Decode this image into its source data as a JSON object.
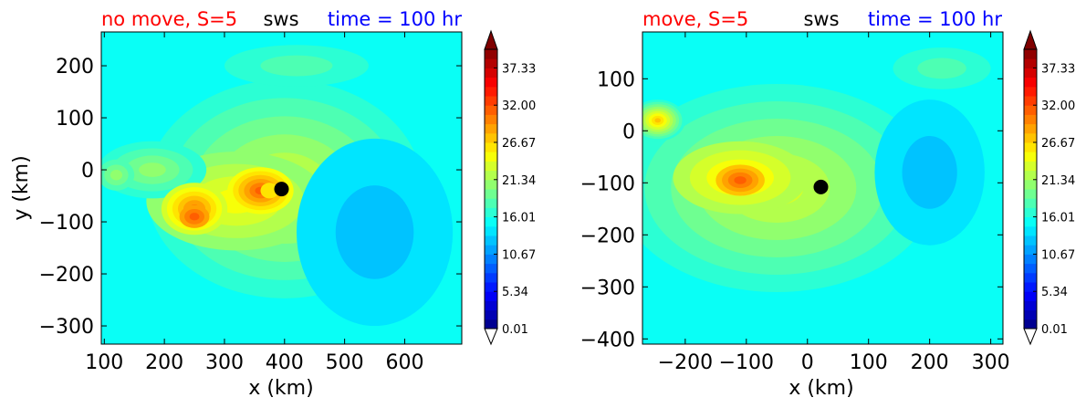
{
  "chart_data": [
    {
      "type": "heatmap",
      "title_left": "no move, S=5",
      "title_center": "sws",
      "title_right": "time = 100 hr",
      "title_colors": {
        "left": "#ff0000",
        "center": "#000000",
        "right": "#0000ff"
      },
      "xlabel": "x (km)",
      "ylabel": "y (km)",
      "xlim": [
        95,
        695
      ],
      "ylim": [
        -335,
        265
      ],
      "xticks": [
        100,
        200,
        300,
        400,
        500,
        600
      ],
      "xtick_labels": [
        "100",
        "200",
        "300",
        "400",
        "500",
        "600"
      ],
      "yticks": [
        200,
        100,
        0,
        -100,
        -200,
        -300
      ],
      "ytick_labels": [
        "200",
        "100",
        "0",
        "−100",
        "−200",
        "−300"
      ],
      "background_level": 11,
      "center_marker": {
        "x": 395,
        "y": -37
      },
      "blobs": [
        {
          "x": 400,
          "y": -37,
          "rx": 230,
          "ry": 210,
          "v": 5.5
        },
        {
          "x": 320,
          "y": -60,
          "rx": 150,
          "ry": 95,
          "v": 4
        },
        {
          "x": 180,
          "y": 0,
          "rx": 90,
          "ry": 55,
          "v": 4
        },
        {
          "x": 360,
          "y": -40,
          "rx": 55,
          "ry": 45,
          "v": 6
        },
        {
          "x": 250,
          "y": -75,
          "rx": 55,
          "ry": 50,
          "v": 6
        },
        {
          "x": 250,
          "y": -90,
          "rx": 25,
          "ry": 22,
          "v": 3
        },
        {
          "x": 120,
          "y": -10,
          "rx": 30,
          "ry": 30,
          "v": 3
        },
        {
          "x": 550,
          "y": -120,
          "rx": 130,
          "ry": 180,
          "v": -2
        },
        {
          "x": 420,
          "y": 200,
          "rx": 120,
          "ry": 40,
          "v": 2
        }
      ],
      "cavity": {
        "x": 375,
        "y": -40,
        "rx": 15,
        "ry": 15,
        "v": -6
      }
    },
    {
      "type": "heatmap",
      "title_left": "move, S=5",
      "title_center": "sws",
      "title_right": "time = 100 hr",
      "title_colors": {
        "left": "#ff0000",
        "center": "#000000",
        "right": "#0000ff"
      },
      "xlabel": "x (km)",
      "ylabel": "",
      "xlim": [
        -270,
        320
      ],
      "ylim": [
        -410,
        190
      ],
      "xticks": [
        -200,
        -100,
        0,
        100,
        200,
        300
      ],
      "xtick_labels": [
        "−200",
        "−100",
        "0",
        "100",
        "200",
        "300"
      ],
      "yticks": [
        100,
        0,
        -100,
        -200,
        -300,
        -400
      ],
      "ytick_labels": [
        "100",
        "0",
        "−100",
        "−200",
        "−300",
        "−400"
      ],
      "background_level": 11,
      "center_marker": {
        "x": 22,
        "y": -108
      },
      "blobs": [
        {
          "x": -50,
          "y": -110,
          "rx": 260,
          "ry": 200,
          "v": 6
        },
        {
          "x": -110,
          "y": -90,
          "rx": 110,
          "ry": 70,
          "v": 4
        },
        {
          "x": -245,
          "y": 20,
          "rx": 45,
          "ry": 40,
          "v": 9
        },
        {
          "x": -110,
          "y": -95,
          "rx": 40,
          "ry": 30,
          "v": 4
        },
        {
          "x": 200,
          "y": -80,
          "rx": 90,
          "ry": 140,
          "v": -2
        },
        {
          "x": 220,
          "y": 120,
          "rx": 80,
          "ry": 40,
          "v": 2
        }
      ]
    }
  ],
  "colorbar": {
    "levels": 30,
    "vmin": 0.01,
    "vmax": 40,
    "tick_labels": [
      "0.01",
      "5.34",
      "10.67",
      "16.01",
      "21.34",
      "26.67",
      "32.00",
      "37.33"
    ]
  }
}
